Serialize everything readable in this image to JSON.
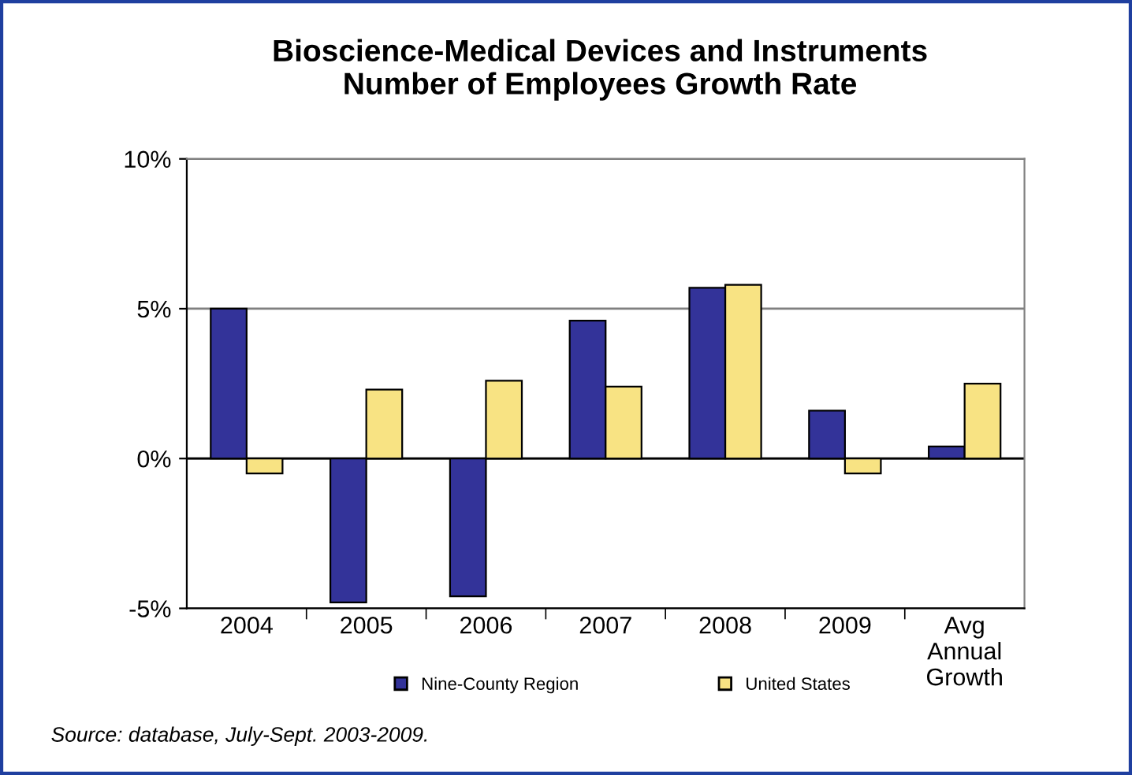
{
  "chart_data": {
    "type": "bar",
    "title": "Bioscience-Medical Devices and Instruments\nNumber of Employees Growth Rate",
    "categories": [
      "2004",
      "2005",
      "2006",
      "2007",
      "2008",
      "2009",
      "Avg\nAnnual\nGrowth"
    ],
    "series": [
      {
        "name": "Nine-County Region",
        "color": "#333399",
        "values": [
          5.0,
          -4.8,
          -4.6,
          4.6,
          5.7,
          1.6,
          0.4
        ]
      },
      {
        "name": "United States",
        "color": "#f8e383",
        "values": [
          -0.5,
          2.3,
          2.6,
          2.4,
          5.8,
          -0.5,
          2.5
        ]
      }
    ],
    "ylim": [
      -5,
      10
    ],
    "yticks": [
      {
        "value": -5,
        "label": "-5%"
      },
      {
        "value": 0,
        "label": "0%"
      },
      {
        "value": 5,
        "label": "5%"
      },
      {
        "value": 10,
        "label": "10%"
      }
    ],
    "grid": "y",
    "legend": "bottom",
    "annotations": [
      "Source: database, July-Sept. 2003-2009."
    ]
  }
}
